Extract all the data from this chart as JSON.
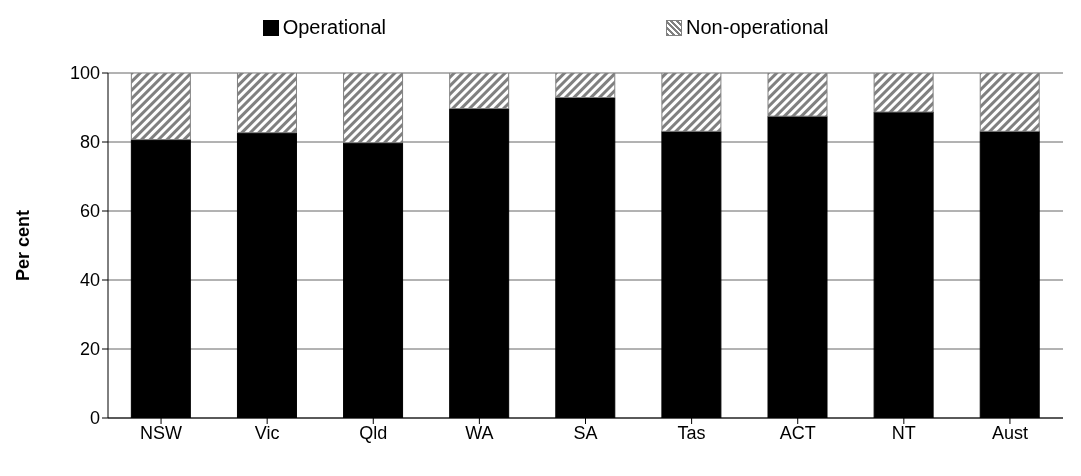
{
  "chart_data": {
    "type": "bar",
    "stacked": true,
    "ylabel": "Per cent",
    "categories": [
      "NSW",
      "Vic",
      "Qld",
      "WA",
      "SA",
      "Tas",
      "ACT",
      "NT",
      "Aust"
    ],
    "series": [
      {
        "name": "Operational",
        "color": "#000000",
        "values": [
          80.7,
          82.7,
          79.8,
          89.7,
          92.9,
          83.1,
          87.5,
          88.7,
          83.1
        ]
      },
      {
        "name": "Non-operational",
        "color": "#808080",
        "values": [
          19.3,
          17.3,
          20.2,
          10.3,
          7.1,
          16.9,
          12.5,
          11.3,
          16.9
        ]
      }
    ],
    "ylim": [
      0,
      100
    ],
    "yticks": [
      0,
      20,
      40,
      60,
      80,
      100
    ],
    "grid": "y",
    "legend": "top"
  }
}
